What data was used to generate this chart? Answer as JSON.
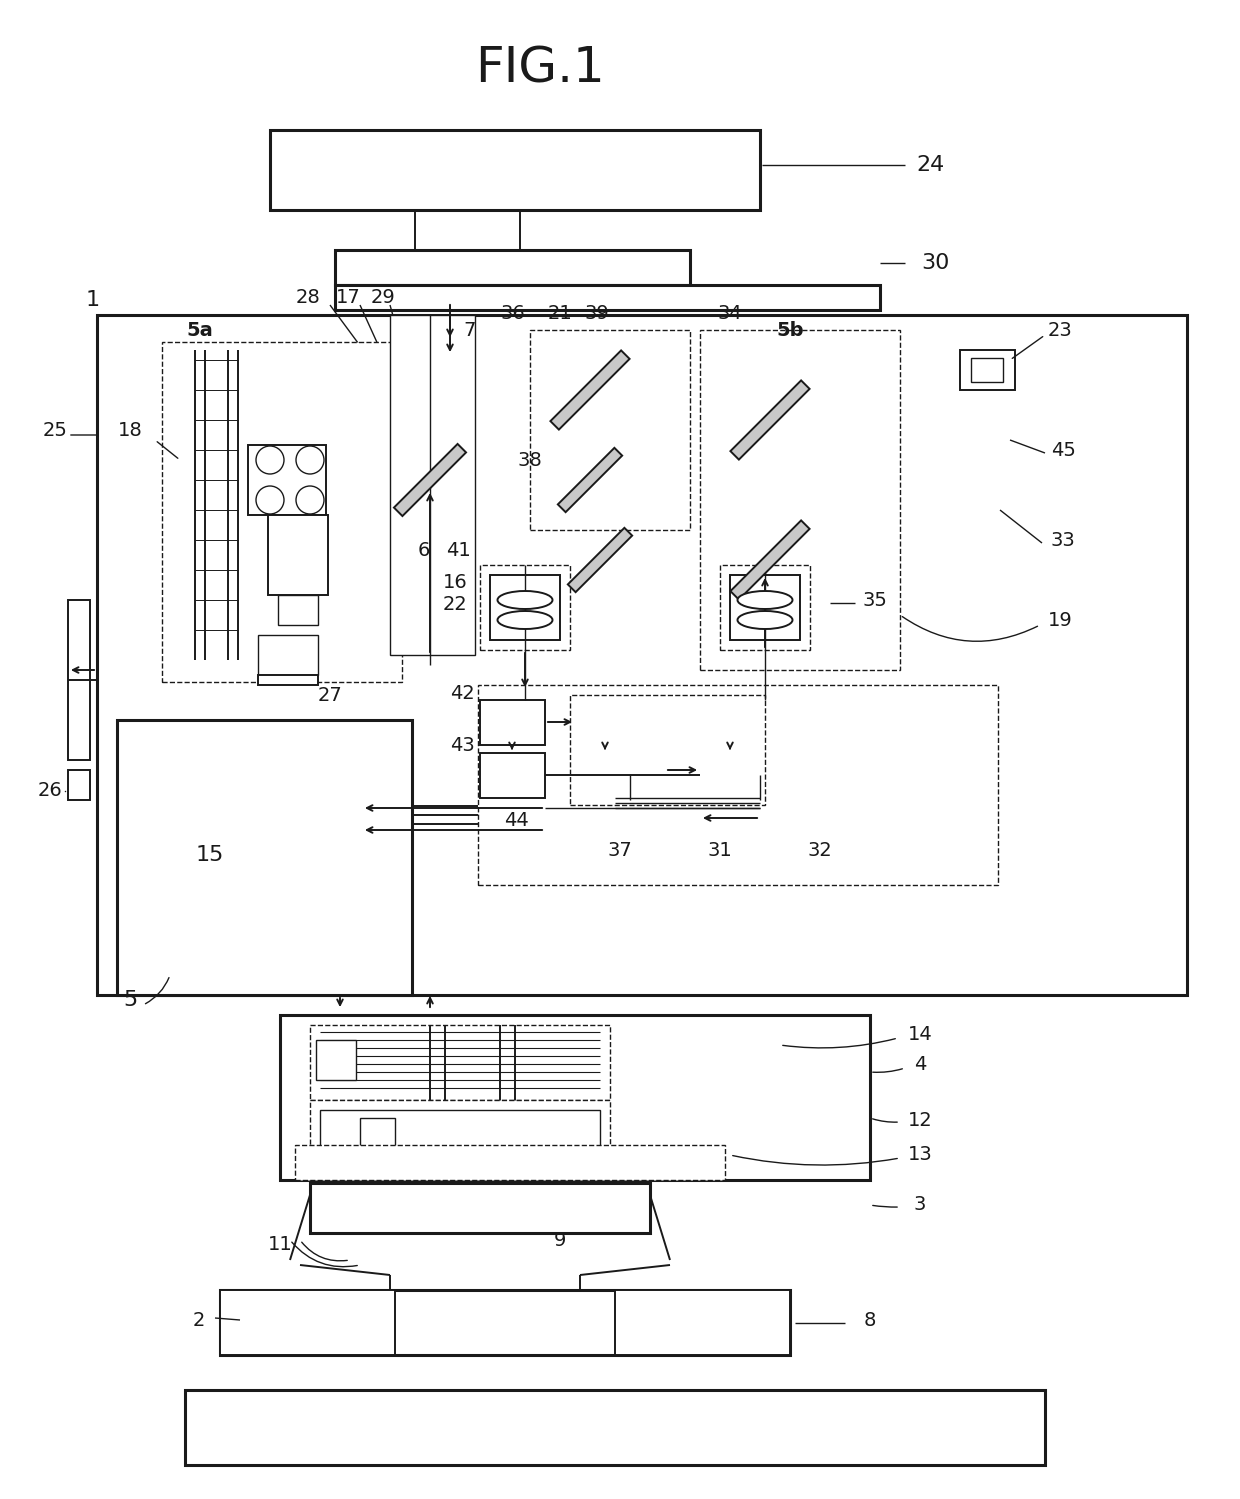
{
  "title": "FIG.1",
  "bg_color": "#ffffff",
  "lc": "#1a1a1a",
  "lw": 1.8,
  "lw_thin": 1.0,
  "lw_thick": 2.2,
  "lw_med": 1.4
}
